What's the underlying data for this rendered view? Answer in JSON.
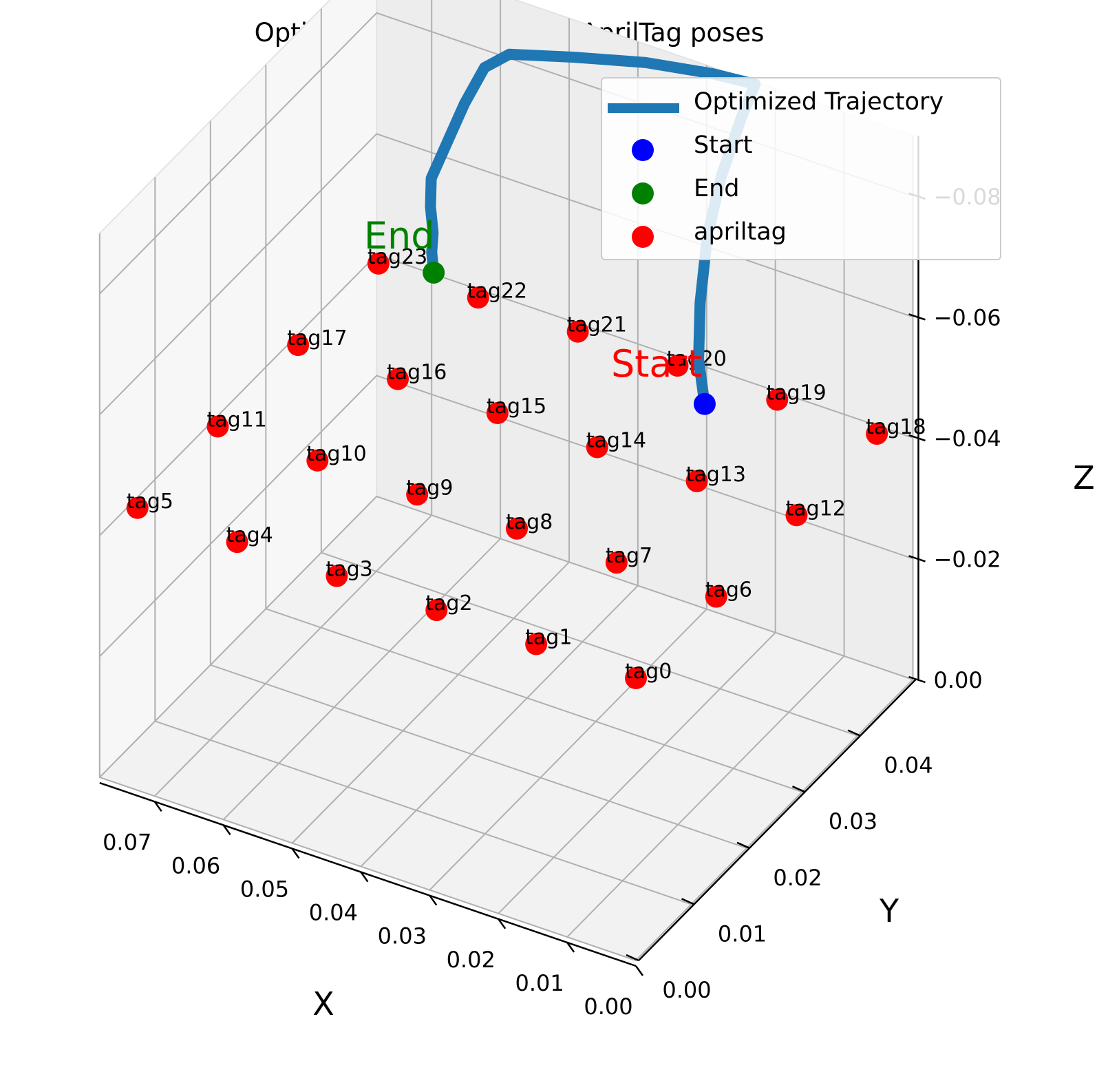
{
  "title": "Optimized trajectory and AprilTag poses",
  "legend": [
    {
      "label": "Optimized Trajectory",
      "kind": "line",
      "color": "#1f77b4"
    },
    {
      "label": "Start",
      "kind": "marker",
      "color": "#0000ff"
    },
    {
      "label": "End",
      "kind": "marker",
      "color": "#008000"
    },
    {
      "label": "apriltag",
      "kind": "marker",
      "color": "#ff0000"
    }
  ],
  "chart_data": {
    "type": "scatter",
    "projection": "3d",
    "title": "Optimized trajectory and AprilTag poses",
    "xlabel": "X",
    "ylabel": "Y",
    "zlabel": "Z",
    "xlim": [
      0.0,
      0.078
    ],
    "ylim": [
      0.0,
      0.05
    ],
    "zlim": [
      0.0,
      -0.09
    ],
    "x_ticks": [
      "0.00",
      "0.01",
      "0.02",
      "0.03",
      "0.04",
      "0.05",
      "0.06",
      "0.07"
    ],
    "y_ticks": [
      "0.00",
      "0.01",
      "0.02",
      "0.03",
      "0.04"
    ],
    "z_ticks": [
      "0.00",
      "−0.02",
      "−0.04",
      "−0.06",
      "−0.08"
    ],
    "grid": true,
    "legend_position": "top-right",
    "series": [
      {
        "name": "Optimized Trajectory",
        "kind": "line",
        "color": "#1f77b4",
        "points": [
          [
            0.0045,
            0.018,
            -0.04
          ],
          [
            0.007,
            0.02,
            -0.048
          ],
          [
            0.01,
            0.024,
            -0.056
          ],
          [
            0.013,
            0.029,
            -0.065
          ],
          [
            0.015,
            0.034,
            -0.073
          ],
          [
            0.016,
            0.039,
            -0.082
          ],
          [
            0.0165,
            0.042,
            -0.086
          ],
          [
            0.022,
            0.041,
            -0.087
          ],
          [
            0.03,
            0.039,
            -0.088
          ],
          [
            0.038,
            0.036,
            -0.089
          ],
          [
            0.045,
            0.033,
            -0.09
          ],
          [
            0.047,
            0.031,
            -0.088
          ],
          [
            0.0475,
            0.028,
            -0.082
          ],
          [
            0.0475,
            0.025,
            -0.076
          ],
          [
            0.0475,
            0.022,
            -0.07
          ],
          [
            0.046,
            0.02,
            -0.066
          ],
          [
            0.044,
            0.018,
            -0.063
          ],
          [
            0.043,
            0.0165,
            -0.0605
          ],
          [
            0.0415,
            0.015,
            -0.058
          ]
        ]
      },
      {
        "name": "Start",
        "kind": "marker",
        "color": "#0000ff",
        "points": [
          [
            0.0045,
            0.018,
            -0.04
          ]
        ]
      },
      {
        "name": "End",
        "kind": "marker",
        "color": "#008000",
        "points": [
          [
            0.0415,
            0.015,
            -0.058
          ]
        ]
      },
      {
        "name": "apriltag",
        "kind": "marker",
        "color": "#ff0000",
        "labels": [
          "tag0",
          "tag1",
          "tag2",
          "tag3",
          "tag4",
          "tag5",
          "tag6",
          "tag7",
          "tag8",
          "tag9",
          "tag10",
          "tag11",
          "tag12",
          "tag13",
          "tag14",
          "tag15",
          "tag16",
          "tag17",
          "tag18",
          "tag19",
          "tag20",
          "tag21",
          "tag22",
          "tag23"
        ],
        "points": [
          [
            0.0,
            0.0,
            0
          ],
          [
            0.0145,
            0.0,
            0
          ],
          [
            0.029,
            0.0,
            0
          ],
          [
            0.0435,
            0.0,
            0
          ],
          [
            0.058,
            0.0,
            0
          ],
          [
            0.0725,
            0.0,
            0
          ],
          [
            0.0,
            0.0145,
            0
          ],
          [
            0.0145,
            0.0145,
            0
          ],
          [
            0.029,
            0.0145,
            0
          ],
          [
            0.0435,
            0.0145,
            0
          ],
          [
            0.058,
            0.0145,
            0
          ],
          [
            0.0725,
            0.0145,
            0
          ],
          [
            0.0,
            0.029,
            0
          ],
          [
            0.0145,
            0.029,
            0
          ],
          [
            0.029,
            0.029,
            0
          ],
          [
            0.0435,
            0.029,
            0
          ],
          [
            0.058,
            0.029,
            0
          ],
          [
            0.0725,
            0.029,
            0
          ],
          [
            0.0,
            0.0435,
            0
          ],
          [
            0.0145,
            0.0435,
            0
          ],
          [
            0.029,
            0.0435,
            0
          ],
          [
            0.0435,
            0.0435,
            0
          ],
          [
            0.058,
            0.0435,
            0
          ],
          [
            0.0725,
            0.0435,
            0
          ]
        ]
      }
    ],
    "annotations": [
      {
        "text": "Start",
        "color": "#ff0000"
      },
      {
        "text": "End",
        "color": "#008000"
      }
    ]
  }
}
